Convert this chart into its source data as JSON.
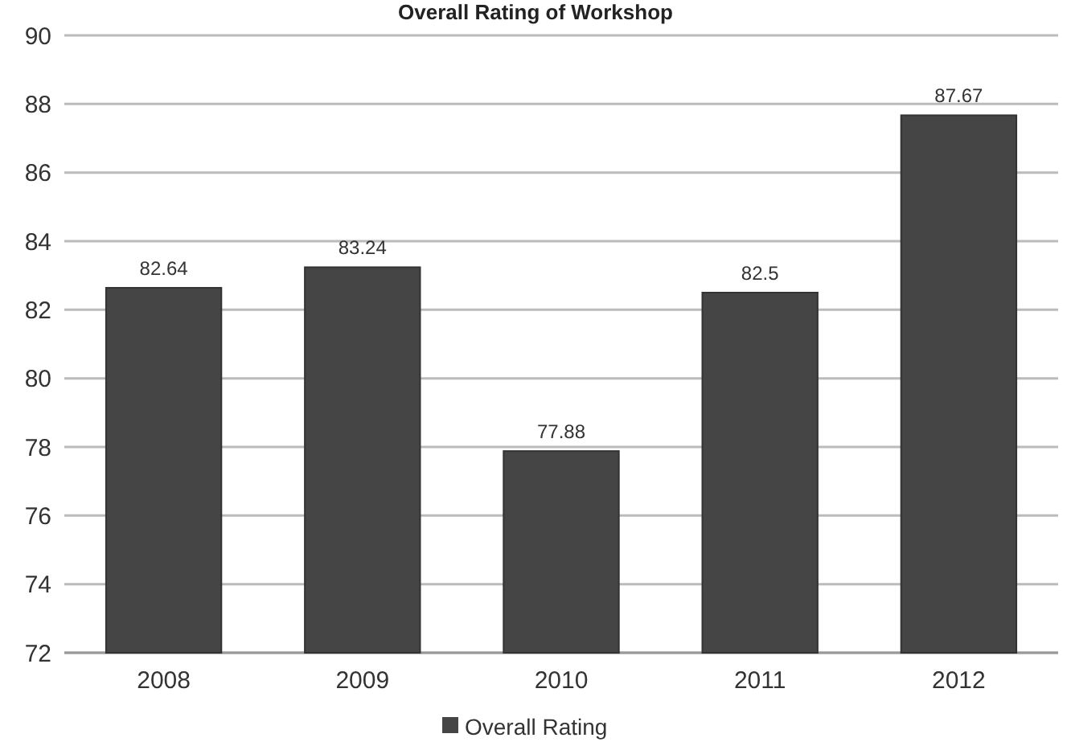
{
  "chart_data": {
    "type": "bar",
    "title": "Overall Rating of Workshop",
    "categories": [
      "2008",
      "2009",
      "2010",
      "2011",
      "2012"
    ],
    "series": [
      {
        "name": "Overall Rating",
        "color": "#454545",
        "values": [
          82.64,
          83.24,
          77.88,
          82.5,
          87.67
        ]
      }
    ],
    "ylim": [
      72,
      90
    ],
    "yticks": [
      72,
      74,
      76,
      78,
      80,
      82,
      84,
      86,
      88,
      90
    ],
    "grid": "y",
    "legend": "bottom",
    "data_labels": true
  }
}
